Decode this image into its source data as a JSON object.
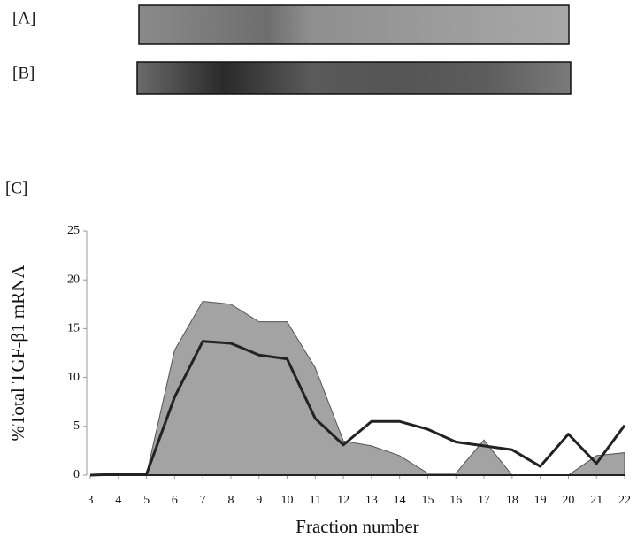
{
  "panel_labels": [
    "[A]",
    "[B]",
    "[C]"
  ],
  "chart_data": {
    "type": "line",
    "y_label": "%Total TGF-β1  mRNA",
    "x_label": "Fraction number",
    "x": [
      3,
      4,
      5,
      6,
      7,
      8,
      9,
      10,
      11,
      12,
      13,
      14,
      15,
      16,
      17,
      18,
      19,
      20,
      21,
      22
    ],
    "xlim": [
      3,
      22
    ],
    "xticks": [
      3,
      4,
      5,
      6,
      7,
      8,
      9,
      10,
      11,
      12,
      13,
      14,
      15,
      16,
      17,
      18,
      19,
      20,
      21,
      22
    ],
    "ylim": [
      0,
      25
    ],
    "yticks": [
      0,
      5,
      10,
      15,
      20,
      25
    ],
    "series": [
      {
        "color": "#a3a3a3",
        "fill": true,
        "values": [
          0,
          0.1,
          0.1,
          12.8,
          17.8,
          17.5,
          15.7,
          15.7,
          11,
          3.5,
          3,
          2,
          0.2,
          0.2,
          3.6,
          0,
          0,
          0,
          2,
          2.3
        ]
      },
      {
        "color": "#222222",
        "fill": false,
        "values": [
          0,
          0.1,
          0.1,
          8,
          13.7,
          13.5,
          12.3,
          11.9,
          5.8,
          3.1,
          5.5,
          5.5,
          4.7,
          3.4,
          3,
          2.6,
          0.9,
          4.2,
          1.2,
          5.1
        ]
      }
    ]
  }
}
